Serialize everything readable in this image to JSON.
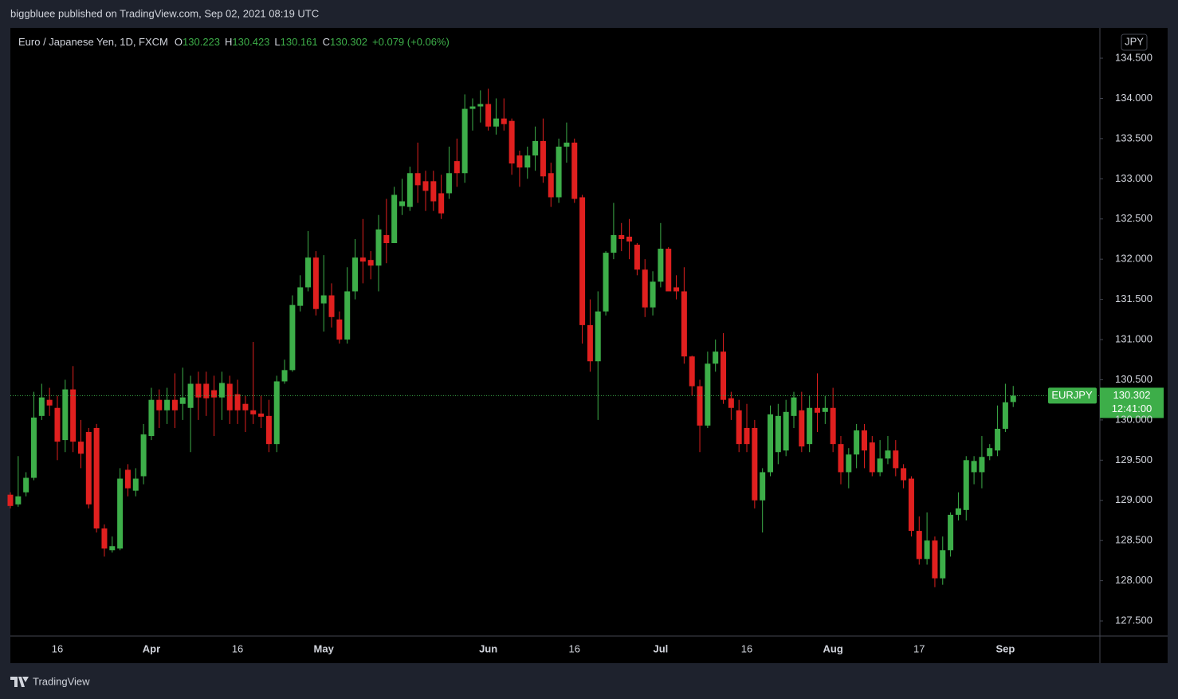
{
  "header": "biggbluee published on TradingView.com, Sep 02, 2021 08:19 UTC",
  "footer": "TradingView",
  "chart_data": {
    "type": "candlestick",
    "title": "Euro / Japanese Yen, 1D, FXCM",
    "ohlc_labels": [
      "O",
      "H",
      "L",
      "C"
    ],
    "change": "+0.079 (+0.06%)",
    "currency": "JPY",
    "symbol": "EURJPY",
    "countdown": "12:41:00",
    "up_color": "#3dae49",
    "down_color": "#e0201f",
    "categories": [
      null,
      null,
      null,
      null,
      null,
      null,
      "16",
      null,
      null,
      null,
      null,
      null,
      null,
      null,
      null,
      null,
      null,
      null,
      "Apr",
      null,
      null,
      null,
      null,
      null,
      null,
      null,
      null,
      null,
      null,
      "16",
      null,
      null,
      null,
      null,
      null,
      null,
      null,
      null,
      null,
      null,
      "May",
      null,
      null,
      null,
      null,
      null,
      null,
      null,
      null,
      null,
      null,
      null,
      null,
      null,
      null,
      null,
      null,
      null,
      null,
      null,
      null,
      "Jun",
      null,
      null,
      null,
      null,
      null,
      null,
      null,
      null,
      null,
      null,
      "16",
      null,
      null,
      null,
      null,
      null,
      null,
      null,
      null,
      null,
      null,
      "Jul",
      null,
      null,
      null,
      null,
      null,
      null,
      null,
      null,
      null,
      null,
      "16",
      null,
      null,
      null,
      null,
      null,
      null,
      null,
      null,
      null,
      null,
      "Aug",
      null,
      null,
      null,
      null,
      null,
      null,
      null,
      null,
      null,
      null,
      "17",
      null,
      null,
      null,
      null,
      null,
      null,
      null,
      null,
      null,
      null,
      "Sep",
      null
    ],
    "open": [
      129.07,
      128.95,
      129.1,
      129.28,
      130.05,
      130.25,
      130.15,
      129.75,
      130.38,
      129.73,
      129.85,
      129.9,
      128.65,
      128.38,
      128.4,
      129.38,
      129.12,
      129.3,
      129.8,
      130.25,
      130.12,
      130.25,
      130.2,
      130.15,
      130.45,
      130.45,
      130.37,
      130.28,
      130.45,
      130.32,
      130.2,
      130.12,
      130.08,
      130.05,
      129.7,
      130.48,
      130.62,
      131.42,
      131.65,
      132.02,
      131.45,
      131.55,
      131.25,
      131.0,
      131.6,
      132.02,
      131.99,
      131.92,
      132.3,
      132.2,
      132.66,
      132.65,
      133.07,
      132.97,
      132.97,
      132.82,
      132.82,
      133.22,
      133.07,
      133.87,
      133.9,
      133.93,
      133.65,
      133.75,
      133.72,
      133.29,
      133.14,
      133.29,
      133.47,
      133.07,
      132.77,
      133.4,
      133.45,
      132.77,
      131.18,
      130.73,
      131.35,
      132.08,
      132.3,
      132.28,
      132.18,
      131.87,
      131.4,
      131.72,
      132.13,
      131.65,
      131.6,
      130.79,
      130.42,
      129.93,
      130.7,
      130.85,
      130.27,
      130.12,
      129.9,
      129.9,
      129.0,
      129.35,
      129.6,
      129.62,
      130.05,
      130.12,
      129.7,
      130.15,
      130.1,
      130.15,
      129.7,
      129.35,
      129.57,
      129.87,
      129.72,
      129.35,
      129.52,
      129.62,
      129.4,
      129.27,
      128.62,
      128.27,
      128.5,
      128.03,
      128.38,
      128.82,
      128.88,
      129.35,
      129.35,
      129.55,
      129.62,
      129.89,
      130.223
    ],
    "high": [
      129.1,
      129.55,
      129.35,
      130.35,
      130.45,
      130.4,
      130.3,
      130.5,
      130.67,
      130.0,
      129.9,
      129.95,
      128.7,
      128.55,
      129.4,
      129.45,
      129.4,
      129.95,
      130.4,
      130.38,
      130.4,
      130.58,
      130.65,
      130.55,
      130.6,
      130.6,
      130.55,
      130.6,
      130.55,
      130.5,
      130.3,
      130.97,
      130.3,
      130.25,
      130.55,
      130.75,
      131.55,
      131.8,
      132.35,
      132.1,
      132.05,
      131.7,
      131.35,
      131.9,
      132.25,
      132.5,
      132.1,
      132.55,
      132.75,
      132.9,
      133.0,
      133.15,
      133.45,
      133.1,
      133.1,
      133.05,
      133.4,
      133.5,
      134.05,
      134.0,
      134.1,
      134.12,
      134.0,
      134.0,
      133.75,
      133.35,
      133.4,
      133.65,
      133.75,
      133.2,
      133.5,
      133.7,
      133.5,
      132.8,
      131.5,
      131.6,
      132.1,
      132.7,
      132.45,
      132.5,
      132.2,
      132.0,
      131.85,
      132.45,
      132.15,
      131.8,
      131.9,
      130.8,
      130.5,
      130.85,
      131.0,
      131.08,
      130.35,
      130.25,
      130.2,
      130.0,
      129.4,
      130.18,
      130.2,
      130.25,
      130.35,
      130.35,
      130.3,
      130.58,
      130.3,
      130.4,
      129.8,
      129.65,
      129.95,
      129.95,
      129.8,
      129.75,
      129.8,
      129.75,
      129.45,
      129.3,
      128.8,
      128.85,
      128.55,
      128.55,
      128.85,
      129.1,
      129.55,
      129.55,
      129.8,
      129.7,
      130.18,
      130.45,
      130.423
    ],
    "low": [
      128.9,
      128.92,
      129.05,
      129.25,
      130.0,
      130.05,
      129.5,
      129.6,
      129.6,
      129.4,
      128.9,
      128.6,
      128.3,
      128.35,
      128.38,
      129.05,
      129.05,
      129.2,
      129.75,
      129.9,
      129.95,
      129.9,
      130.0,
      129.6,
      130.0,
      130.05,
      129.8,
      130.0,
      129.95,
      129.95,
      129.85,
      129.95,
      129.9,
      129.6,
      129.6,
      130.45,
      130.6,
      131.35,
      131.6,
      131.3,
      131.1,
      131.15,
      130.95,
      130.95,
      131.5,
      131.7,
      131.75,
      131.6,
      131.95,
      132.2,
      132.55,
      132.6,
      132.7,
      132.6,
      132.6,
      132.5,
      132.75,
      132.9,
      132.95,
      133.6,
      133.7,
      133.6,
      133.55,
      133.6,
      133.05,
      132.9,
      133.0,
      133.1,
      132.95,
      132.65,
      132.7,
      133.2,
      132.7,
      130.95,
      130.6,
      130.0,
      131.3,
      132.0,
      132.1,
      132.0,
      131.8,
      131.28,
      131.3,
      131.65,
      131.6,
      131.5,
      130.7,
      130.3,
      129.6,
      129.9,
      130.6,
      130.2,
      130.0,
      129.6,
      129.6,
      128.9,
      128.6,
      129.3,
      129.45,
      129.55,
      129.9,
      129.6,
      129.6,
      129.85,
      129.95,
      129.6,
      129.2,
      129.15,
      129.4,
      129.4,
      129.3,
      129.3,
      129.45,
      129.3,
      129.15,
      128.55,
      128.2,
      128.2,
      127.92,
      127.95,
      128.3,
      128.75,
      128.75,
      129.2,
      129.15,
      129.5,
      129.55,
      129.85,
      130.161
    ],
    "close": [
      128.93,
      129.05,
      129.28,
      130.03,
      130.28,
      130.18,
      129.73,
      130.38,
      129.73,
      129.58,
      128.95,
      128.65,
      128.4,
      128.43,
      129.27,
      129.15,
      129.27,
      129.82,
      130.25,
      130.12,
      130.25,
      130.12,
      130.28,
      130.45,
      130.28,
      130.27,
      130.28,
      130.46,
      130.12,
      130.12,
      130.12,
      130.07,
      130.04,
      129.7,
      130.48,
      130.62,
      131.43,
      131.65,
      132.02,
      131.38,
      131.55,
      131.28,
      131.0,
      131.6,
      132.02,
      131.97,
      131.92,
      132.37,
      132.2,
      132.8,
      132.72,
      133.07,
      132.92,
      132.85,
      132.72,
      132.57,
      133.07,
      133.07,
      133.87,
      133.9,
      133.93,
      133.65,
      133.75,
      133.68,
      133.19,
      133.14,
      133.29,
      133.47,
      133.03,
      132.77,
      133.4,
      133.45,
      132.75,
      131.18,
      130.73,
      131.35,
      132.08,
      132.3,
      132.25,
      132.22,
      131.87,
      131.4,
      131.72,
      132.13,
      131.6,
      131.6,
      130.79,
      130.42,
      129.93,
      130.7,
      130.85,
      130.25,
      130.15,
      129.7,
      129.7,
      129.0,
      129.35,
      130.07,
      130.05,
      130.1,
      130.28,
      129.67,
      130.15,
      130.09,
      130.15,
      129.7,
      129.35,
      129.57,
      129.87,
      129.62,
      129.35,
      129.52,
      129.62,
      129.4,
      129.25,
      128.62,
      128.27,
      128.5,
      128.03,
      128.38,
      128.82,
      128.9,
      129.5,
      129.49,
      129.54,
      129.65,
      129.89,
      130.22,
      130.302
    ],
    "ylim": [
      127.312,
      134.877
    ],
    "yticks": [
      {
        "value": 127.5,
        "label": "127.500"
      },
      {
        "value": 128,
        "label": "128.000"
      },
      {
        "value": 128.5,
        "label": "128.500"
      },
      {
        "value": 129,
        "label": "129.000"
      },
      {
        "value": 129.5,
        "label": "129.500"
      },
      {
        "value": 130,
        "label": "130.000"
      },
      {
        "value": 130.5,
        "label": "130.500"
      },
      {
        "value": 131,
        "label": "131.000"
      },
      {
        "value": 131.5,
        "label": "131.500"
      },
      {
        "value": 132,
        "label": "132.000"
      },
      {
        "value": 132.5,
        "label": "132.500"
      },
      {
        "value": 133,
        "label": "133.000"
      },
      {
        "value": 133.5,
        "label": "133.500"
      },
      {
        "value": 134,
        "label": "134.000"
      },
      {
        "value": 134.5,
        "label": "134.500"
      }
    ]
  }
}
